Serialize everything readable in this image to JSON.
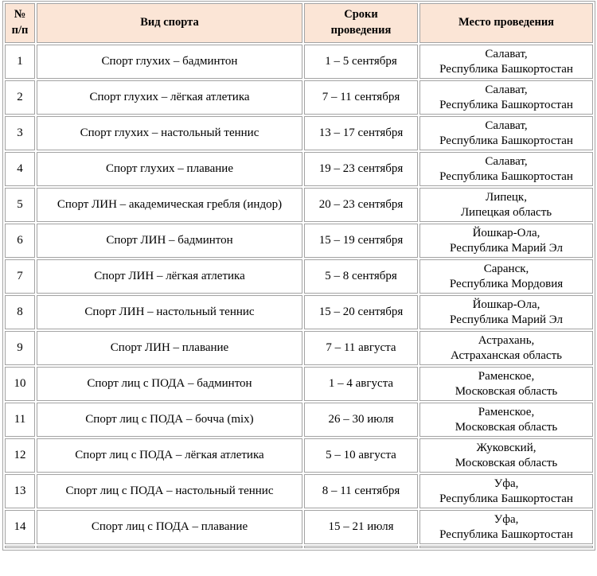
{
  "header": {
    "col_num_line1": "№",
    "col_num_line2": "п/п",
    "col_sport": "Вид спорта",
    "col_dates_line1": "Сроки",
    "col_dates_line2": "проведения",
    "col_place": "Место проведения"
  },
  "rows": [
    {
      "num": "1",
      "sport": "Спорт глухих – бадминтон",
      "dates": "1 – 5 сентября",
      "place1": "Салават,",
      "place2": "Республика Башкортостан"
    },
    {
      "num": "2",
      "sport": "Спорт глухих – лёгкая атлетика",
      "dates": "7 – 11 сентября",
      "place1": "Салават,",
      "place2": "Республика Башкортостан"
    },
    {
      "num": "3",
      "sport": "Спорт глухих – настольный теннис",
      "dates": "13 – 17 сентября",
      "place1": "Салават,",
      "place2": "Республика Башкортостан"
    },
    {
      "num": "4",
      "sport": "Спорт глухих – плавание",
      "dates": "19 – 23 сентября",
      "place1": "Салават,",
      "place2": "Республика Башкортостан"
    },
    {
      "num": "5",
      "sport": "Спорт ЛИН – академическая гребля (индор)",
      "dates": "20 – 23 сентября",
      "place1": "Липецк,",
      "place2": "Липецкая область"
    },
    {
      "num": "6",
      "sport": "Спорт ЛИН – бадминтон",
      "dates": "15 – 19 сентября",
      "place1": "Йошкар-Ола,",
      "place2": "Республика Марий Эл"
    },
    {
      "num": "7",
      "sport": "Спорт ЛИН – лёгкая атлетика",
      "dates": "5 – 8 сентября",
      "place1": "Саранск,",
      "place2": "Республика Мордовия"
    },
    {
      "num": "8",
      "sport": "Спорт ЛИН – настольный теннис",
      "dates": "15 – 20 сентября",
      "place1": "Йошкар-Ола,",
      "place2": "Республика Марий Эл"
    },
    {
      "num": "9",
      "sport": "Спорт ЛИН – плавание",
      "dates": "7 – 11 августа",
      "place1": "Астрахань,",
      "place2": "Астраханская область"
    },
    {
      "num": "10",
      "sport": "Спорт лиц с ПОДА – бадминтон",
      "dates": "1 – 4 августа",
      "place1": "Раменское,",
      "place2": "Московская область"
    },
    {
      "num": "11",
      "sport": "Спорт лиц с ПОДА – бочча (mix)",
      "dates": "26 – 30 июля",
      "place1": "Раменское,",
      "place2": "Московская область"
    },
    {
      "num": "12",
      "sport": "Спорт лиц с ПОДА – лёгкая атлетика",
      "dates": "5 – 10 августа",
      "place1": "Жуковский,",
      "place2": "Московская область"
    },
    {
      "num": "13",
      "sport": "Спорт лиц с ПОДА – настольный теннис",
      "dates": "8 – 11 сентября",
      "place1": "Уфа,",
      "place2": "Республика Башкортостан"
    },
    {
      "num": "14",
      "sport": "Спорт лиц с ПОДА – плавание",
      "dates": "15 – 21 июля",
      "place1": "Уфа,",
      "place2": "Республика Башкортостан"
    }
  ],
  "colors": {
    "header_bg": "#FBE5D6",
    "border": "#A3A3A3",
    "text": "#000000",
    "page_bg": "#FFFFFF"
  }
}
